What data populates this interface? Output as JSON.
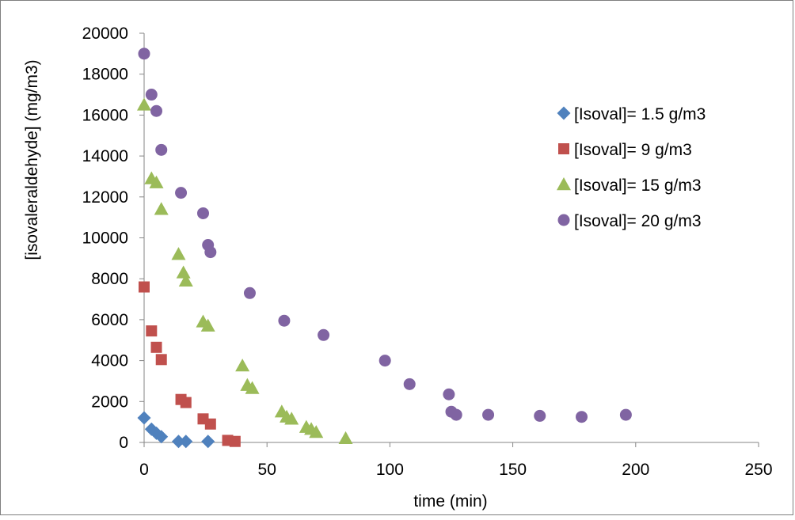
{
  "chart_data": {
    "type": "scatter",
    "title": "",
    "xlabel": "time (min)",
    "ylabel": "[isovaleraldehyde] (mg/m3)",
    "xlim": [
      0,
      250
    ],
    "ylim": [
      0,
      20000
    ],
    "xticks": [
      0,
      50,
      100,
      150,
      200,
      250
    ],
    "xtick_labels": [
      "0",
      "50",
      "100",
      "150",
      "200",
      "250"
    ],
    "yticks": [
      0,
      2000,
      4000,
      6000,
      8000,
      10000,
      12000,
      14000,
      16000,
      18000,
      20000
    ],
    "ytick_labels": [
      "0",
      "2000",
      "4000",
      "6000",
      "8000",
      "10000",
      "12000",
      "14000",
      "16000",
      "18000",
      "20000"
    ],
    "grid": false,
    "legend_position": "right",
    "series": [
      {
        "name": "[Isoval]= 1.5 g/m3",
        "marker": "diamond",
        "color": "#4f81bd",
        "points": [
          [
            0,
            1200
          ],
          [
            3,
            650
          ],
          [
            5,
            450
          ],
          [
            7,
            280
          ],
          [
            14,
            50
          ],
          [
            17,
            50
          ],
          [
            26,
            50
          ]
        ]
      },
      {
        "name": "[Isoval]= 9 g/m3",
        "marker": "square",
        "color": "#c0504d",
        "points": [
          [
            0,
            7600
          ],
          [
            3,
            5450
          ],
          [
            5,
            4650
          ],
          [
            7,
            4050
          ],
          [
            15,
            2100
          ],
          [
            17,
            1950
          ],
          [
            24,
            1150
          ],
          [
            27,
            900
          ],
          [
            34,
            100
          ],
          [
            37,
            50
          ]
        ]
      },
      {
        "name": "[Isoval]= 15 g/m3",
        "marker": "triangle",
        "color": "#9bbb59",
        "points": [
          [
            0,
            16500
          ],
          [
            3,
            12900
          ],
          [
            5,
            12700
          ],
          [
            7,
            11400
          ],
          [
            14,
            9200
          ],
          [
            16,
            8300
          ],
          [
            17,
            7900
          ],
          [
            24,
            5900
          ],
          [
            26,
            5700
          ],
          [
            40,
            3750
          ],
          [
            42,
            2800
          ],
          [
            44,
            2650
          ],
          [
            56,
            1500
          ],
          [
            58,
            1250
          ],
          [
            60,
            1150
          ],
          [
            66,
            750
          ],
          [
            68,
            650
          ],
          [
            70,
            500
          ],
          [
            82,
            200
          ]
        ]
      },
      {
        "name": "[Isoval]= 20 g/m3",
        "marker": "circle",
        "color": "#8064a2",
        "points": [
          [
            0,
            19000
          ],
          [
            3,
            17000
          ],
          [
            5,
            16200
          ],
          [
            7,
            14300
          ],
          [
            15,
            12200
          ],
          [
            24,
            11200
          ],
          [
            26,
            9650
          ],
          [
            27,
            9300
          ],
          [
            43,
            7300
          ],
          [
            57,
            5950
          ],
          [
            73,
            5250
          ],
          [
            98,
            4000
          ],
          [
            108,
            2850
          ],
          [
            124,
            2350
          ],
          [
            125,
            1500
          ],
          [
            127,
            1350
          ],
          [
            140,
            1350
          ],
          [
            161,
            1300
          ],
          [
            178,
            1250
          ],
          [
            196,
            1350
          ]
        ]
      }
    ]
  }
}
